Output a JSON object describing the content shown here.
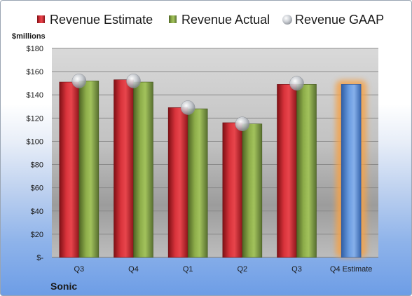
{
  "chart_data": {
    "type": "bar",
    "company": "Sonic",
    "unit_label": "$millions",
    "categories": [
      "Q3",
      "Q4",
      "Q1",
      "Q2",
      "Q3",
      "Q4 Estimate"
    ],
    "series": [
      {
        "name": "Revenue Estimate",
        "color": "#c0242b",
        "values": [
          151,
          153,
          129,
          116,
          149,
          null
        ]
      },
      {
        "name": "Revenue Actual",
        "color": "#7e9a3f",
        "values": [
          152,
          151,
          128,
          115,
          149,
          null
        ]
      },
      {
        "name": "Revenue GAAP",
        "color": "#b8bcc4",
        "values": [
          152,
          152,
          129,
          115,
          150,
          null
        ]
      }
    ],
    "estimate": {
      "value": 149,
      "color": "#5a8fd6",
      "highlight": "#f4a24a"
    },
    "y_ticks": [
      "$-",
      "$20",
      "$40",
      "$60",
      "$80",
      "$100",
      "$120",
      "$140",
      "$160",
      "$180"
    ],
    "ylim": [
      0,
      180
    ],
    "grid": true,
    "legend_position": "top"
  }
}
